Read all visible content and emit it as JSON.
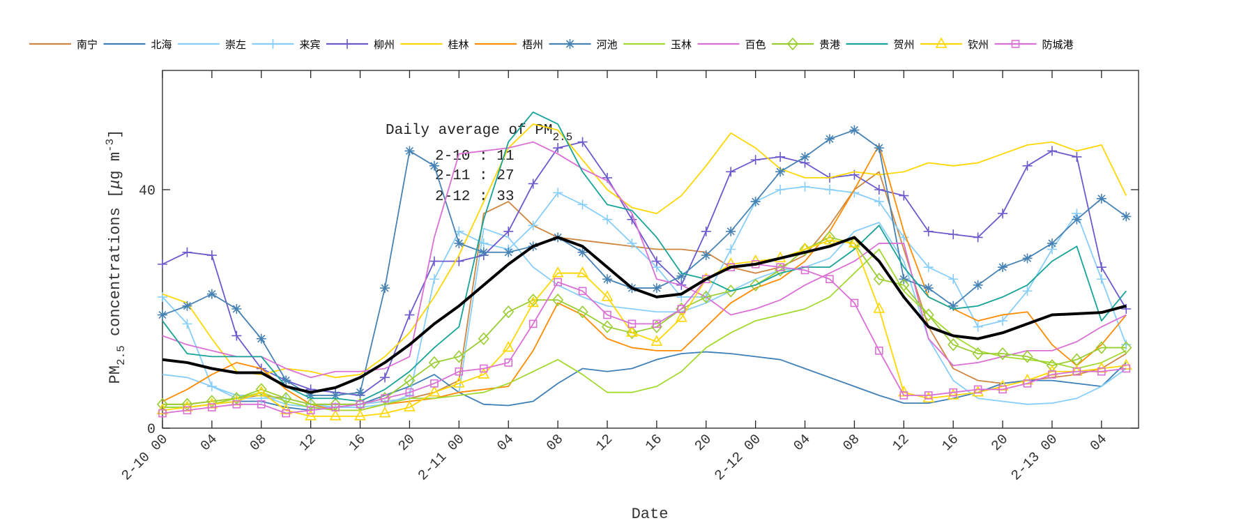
{
  "chart_data": {
    "type": "line",
    "xlabel": "Date",
    "ylabel": {
      "prefix": "PM",
      "sub": "2.5",
      "middle": " concentrations [",
      "mu": "μ",
      "unit": "g m",
      "sup": "-3",
      "suffix": "]"
    },
    "xlim": [
      "2-10 00",
      "2-13 07"
    ],
    "ylim": [
      0,
      60
    ],
    "yticks": [
      0,
      40
    ],
    "xticks": [
      "2-10 00",
      "04",
      "08",
      "12",
      "16",
      "20",
      "2-11 00",
      "04",
      "08",
      "12",
      "16",
      "20",
      "2-12 00",
      "04",
      "08",
      "12",
      "16",
      "20",
      "2-13 00",
      "04"
    ],
    "grid": false,
    "legend_placement": "top, outside, single row",
    "annotation": {
      "title": "Daily average of PM",
      "title_sub": "2.5",
      "lines": [
        "2-10 : 11",
        "2-11 : 27",
        "2-12 : 33"
      ]
    },
    "x": [
      "2-10 00",
      "2-10 02",
      "2-10 04",
      "2-10 06",
      "2-10 08",
      "2-10 10",
      "2-10 12",
      "2-10 14",
      "2-10 16",
      "2-10 18",
      "2-10 20",
      "2-10 22",
      "2-11 00",
      "2-11 02",
      "2-11 04",
      "2-11 06",
      "2-11 08",
      "2-11 10",
      "2-11 12",
      "2-11 14",
      "2-11 16",
      "2-11 18",
      "2-11 20",
      "2-11 22",
      "2-12 00",
      "2-12 02",
      "2-12 04",
      "2-12 06",
      "2-12 08",
      "2-12 10",
      "2-12 12",
      "2-12 14",
      "2-12 16",
      "2-12 18",
      "2-12 20",
      "2-12 22",
      "2-13 00",
      "2-13 02",
      "2-13 04",
      "2-13 06"
    ],
    "series": [
      {
        "name": "南宁",
        "color": "#cd853f",
        "marker": "none",
        "values": [
          4,
          4,
          4.5,
          5,
          5.5,
          5,
          4,
          4,
          4,
          4.5,
          5,
          6,
          8,
          36,
          38,
          34,
          32,
          31.5,
          31,
          30.5,
          30,
          30,
          29.5,
          27,
          26,
          27,
          29,
          34,
          40,
          43,
          30,
          17,
          10,
          8,
          7.5,
          8,
          8.5,
          9,
          10,
          12.5
        ]
      },
      {
        "name": "北海",
        "color": "#3f7fb8",
        "marker": "none",
        "values": [
          3.5,
          3.5,
          4,
          4.5,
          4.5,
          3.5,
          3,
          3.5,
          4,
          5.5,
          7,
          9,
          6,
          4,
          3.8,
          4.5,
          7.5,
          10,
          9.5,
          10,
          11.5,
          12.5,
          12.8,
          12.5,
          12,
          11.5,
          10,
          8.5,
          7,
          5.5,
          4.2,
          4.2,
          5,
          6,
          7.5,
          8,
          8,
          7.5,
          7,
          11
        ]
      },
      {
        "name": "崇左",
        "color": "#87cefa",
        "marker": "none",
        "values": [
          9,
          8.5,
          7,
          5.5,
          5.5,
          4,
          3.5,
          3.5,
          4,
          4.5,
          5,
          5,
          6,
          33.5,
          32,
          27,
          24,
          22,
          20.5,
          20,
          19.5,
          19.5,
          21,
          23,
          25,
          26.5,
          27,
          28.5,
          33,
          34.5,
          28,
          15,
          8,
          5,
          4.5,
          4,
          4.2,
          5,
          7,
          10
        ]
      },
      {
        "name": "来宾",
        "color": "#87cefa",
        "marker": "plus",
        "values": [
          22,
          17.5,
          7,
          5,
          5,
          5,
          4,
          3.5,
          3.5,
          4,
          5.5,
          25,
          33,
          31,
          30,
          34,
          39.5,
          37.5,
          35,
          31,
          27,
          22,
          22,
          30,
          38,
          40,
          40.5,
          40,
          39.5,
          38,
          32,
          27,
          25,
          17,
          18,
          23,
          30,
          36,
          25,
          14
        ]
      },
      {
        "name": "柳州",
        "color": "#6a5acd",
        "marker": "plus",
        "values": [
          27.5,
          29.5,
          29,
          15.5,
          10,
          8,
          6.5,
          6,
          5.5,
          8.5,
          19,
          28,
          28,
          29,
          33,
          41,
          47,
          48,
          42,
          35,
          28,
          24,
          33,
          43,
          45,
          45.5,
          44.5,
          42,
          42.5,
          40,
          39,
          33,
          32.5,
          32,
          36,
          44,
          46.5,
          45.5,
          27,
          20
        ]
      },
      {
        "name": "桂林",
        "color": "#ffd700",
        "marker": "none",
        "values": [
          22.5,
          21,
          15,
          9.5,
          9,
          10,
          9.5,
          8.5,
          9,
          12,
          16,
          22,
          29,
          38,
          47,
          51,
          50,
          45,
          40,
          37,
          36,
          39,
          44,
          49.5,
          47,
          43.5,
          42,
          42,
          43,
          42.5,
          43,
          44.5,
          44,
          44.5,
          46,
          47.5,
          48,
          46.5,
          47.5,
          39
        ]
      },
      {
        "name": "梧州",
        "color": "#ff8c00",
        "marker": "none",
        "values": [
          4.5,
          6.5,
          9,
          11,
          10,
          6.5,
          4,
          3,
          3,
          4,
          4.5,
          5,
          6,
          6.5,
          7,
          13,
          21,
          19,
          15,
          13.5,
          13,
          13,
          17,
          21,
          23.5,
          25,
          28,
          33,
          40,
          47.5,
          33,
          22,
          20,
          18,
          19,
          19.5,
          14,
          10.5,
          14,
          19
        ]
      },
      {
        "name": "河池",
        "color": "#4682b4",
        "marker": "asterisk",
        "values": [
          19,
          20.5,
          22.5,
          20,
          15,
          8,
          5.5,
          5.5,
          6,
          23.5,
          46.5,
          44,
          31,
          29.5,
          29.5,
          30.5,
          32,
          29.5,
          25,
          23.5,
          23.5,
          25.5,
          29,
          33,
          38,
          43,
          45.5,
          48.5,
          50,
          47,
          25,
          23.5,
          20.5,
          24,
          27,
          28.5,
          31,
          35,
          38.5,
          35.5
        ]
      },
      {
        "name": "玉林",
        "color": "#a4d930",
        "marker": "none",
        "values": [
          3.5,
          3.5,
          4,
          5,
          6,
          4.5,
          3.5,
          3,
          3,
          4,
          5,
          5,
          5.5,
          6,
          7.5,
          9.5,
          11.5,
          9,
          6,
          6,
          7,
          9.5,
          13.5,
          16,
          18,
          19,
          20,
          22,
          26,
          30,
          23,
          19,
          15.5,
          13,
          12,
          11.5,
          11,
          10,
          11,
          13
        ]
      },
      {
        "name": "百色",
        "color": "#da70d6",
        "marker": "none",
        "values": [
          15.5,
          14,
          13,
          12,
          12,
          10,
          8.5,
          9.5,
          9.5,
          10,
          12,
          32,
          46,
          46.5,
          47,
          48,
          46,
          43.5,
          41.5,
          36,
          25,
          24,
          22,
          19,
          20,
          21.5,
          24,
          26,
          28,
          31,
          31,
          15,
          10.5,
          11,
          12,
          13,
          13,
          14.5,
          17,
          19
        ]
      },
      {
        "name": "贵港",
        "color": "#9acd32",
        "marker": "diamond",
        "values": [
          4,
          4,
          4.5,
          5,
          6.5,
          5,
          4,
          4,
          4,
          5,
          8,
          11,
          12,
          15,
          19.5,
          21.5,
          21.5,
          19.5,
          17,
          16,
          17,
          20,
          22,
          23,
          24,
          26.5,
          30,
          32,
          31,
          25,
          24,
          19,
          14,
          12.5,
          12.5,
          12,
          10.5,
          11.5,
          13.5,
          13.5
        ]
      },
      {
        "name": "贺州",
        "color": "#17a398",
        "marker": "none",
        "values": [
          18,
          12.5,
          12,
          12,
          12,
          7,
          5,
          5,
          4.5,
          6.5,
          9.5,
          13.5,
          17,
          35,
          48,
          53,
          51,
          43,
          37.5,
          36.5,
          32,
          26,
          25,
          23,
          24,
          26,
          27,
          27,
          30,
          34,
          27,
          22,
          20,
          20.5,
          22,
          24,
          28,
          30.5,
          18,
          23
        ]
      },
      {
        "name": "钦州",
        "color": "#ffd700",
        "marker": "triangle",
        "values": [
          3,
          3.5,
          4,
          4.5,
          6,
          3,
          2,
          2,
          2,
          2.5,
          3.5,
          6,
          7.5,
          9,
          13.5,
          21,
          26,
          26,
          22,
          16,
          14.5,
          18.5,
          25,
          27.5,
          28,
          28.5,
          30,
          31.5,
          31,
          20,
          6,
          5,
          5.5,
          6,
          7,
          8,
          9.5,
          9.5,
          10,
          10.5
        ]
      },
      {
        "name": "防城港",
        "color": "#da70d6",
        "marker": "square",
        "values": [
          2.5,
          3,
          3.5,
          4,
          4,
          2.5,
          3,
          3.5,
          4,
          5,
          6,
          7.5,
          9.5,
          10,
          11,
          17.5,
          24.5,
          23,
          19,
          17.5,
          17.5,
          20,
          25,
          27,
          27.5,
          27,
          26.5,
          25,
          21,
          13,
          5.5,
          5.5,
          6,
          6.5,
          6.5,
          7.5,
          9,
          9.5,
          9.5,
          10
        ]
      },
      {
        "name": "",
        "color": "#000000",
        "marker": "none",
        "role": "average",
        "values": [
          11.5,
          11,
          10,
          9.3,
          9.3,
          7,
          6,
          6.8,
          8.5,
          11,
          14,
          17.5,
          20.5,
          24,
          27.5,
          30.5,
          32,
          30.5,
          27,
          23.5,
          22,
          22.5,
          25,
          27,
          27.5,
          28.5,
          29.5,
          30.5,
          32,
          28,
          22,
          17,
          15.5,
          15,
          16,
          17.5,
          19,
          19.2,
          19.4,
          20.5
        ]
      }
    ]
  }
}
